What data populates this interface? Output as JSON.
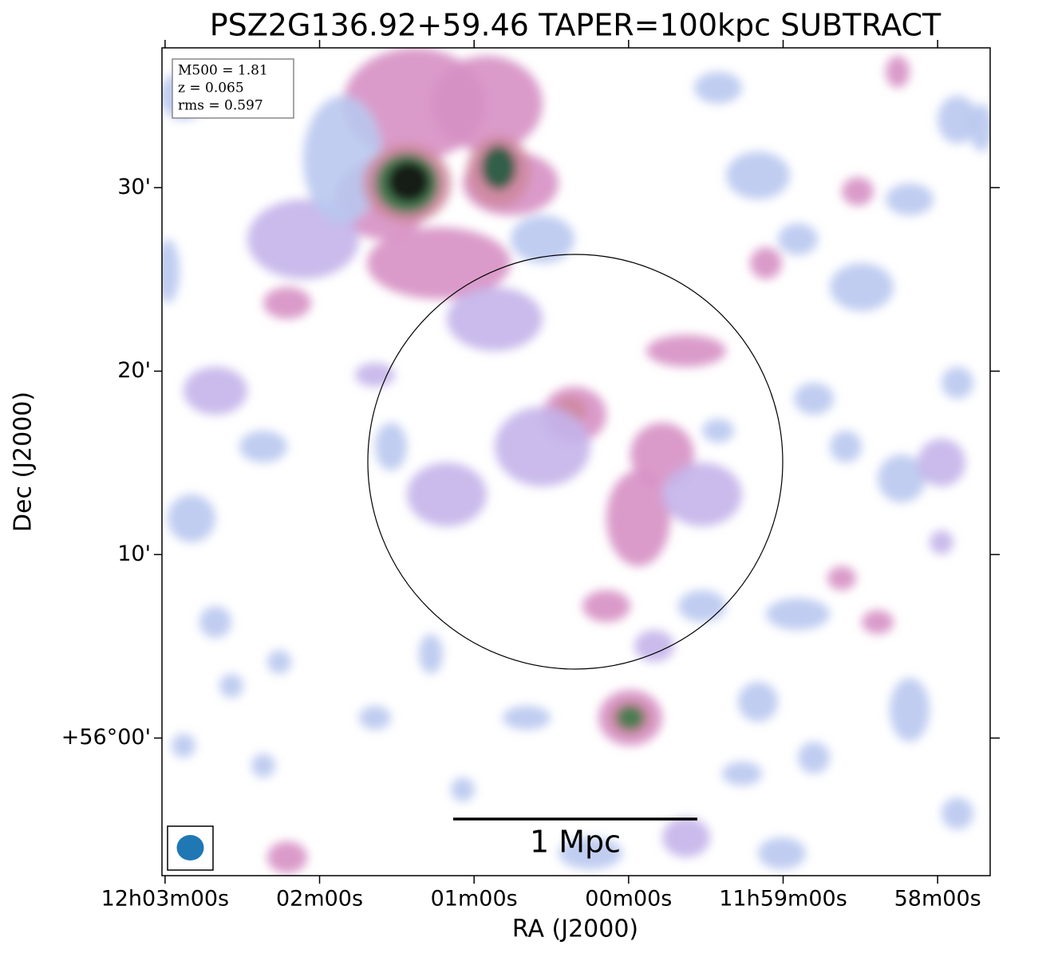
{
  "chart_data": {
    "type": "image",
    "title": "PSZ2G136.92+59.46 TAPER=100kpc SUBTRACT",
    "annotations": [
      "M500 = 1.81",
      "z = 0.065",
      "rms = 0.597"
    ],
    "scale_bar_label": "1 Mpc",
    "xlabel": "RA (J2000)",
    "ylabel": "Dec (J2000)",
    "xlim": [
      180.755,
      179.415
    ],
    "ylim": [
      55.875,
      56.627
    ],
    "xticks": [
      {
        "value": 180.75,
        "label": "12h03m00s"
      },
      {
        "value": 180.5,
        "label": "02m00s"
      },
      {
        "value": 180.25,
        "label": "01m00s"
      },
      {
        "value": 180.0,
        "label": "00m00s"
      },
      {
        "value": 179.75,
        "label": "11h59m00s"
      },
      {
        "value": 179.5,
        "label": "58m00s"
      }
    ],
    "yticks": [
      {
        "value": 56.0,
        "label": "+56°00'"
      },
      {
        "value": 56.1667,
        "label": "10'"
      },
      {
        "value": 56.3333,
        "label": "20'"
      },
      {
        "value": 56.5,
        "label": "30'"
      }
    ]
  }
}
